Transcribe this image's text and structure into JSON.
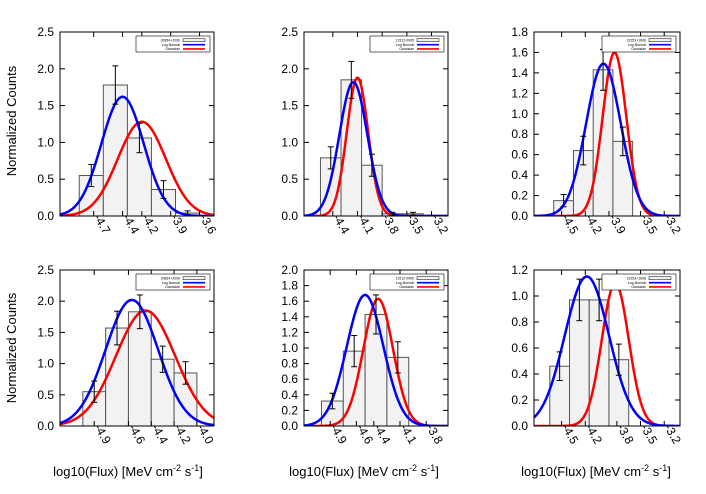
{
  "figure": {
    "ylabel": "Normalized Counts",
    "xlabel_prefix": "log10(Flux) [MeV cm",
    "xlabel_exp1": "-2",
    "xlabel_mid": " s",
    "xlabel_exp2": "-1",
    "xlabel_suffix": "]"
  },
  "colors": {
    "lognormal": "#0000ff",
    "gaussian": "#ff0000",
    "bar_fill": "#f2f2f2",
    "bar_stroke": "#555555"
  },
  "chart_data": [
    {
      "type": "bar",
      "panel": "top-left",
      "legend": {
        "data_label": "J0854+2006",
        "lognormal": "Log-Normal",
        "gaussian": "Gaussian"
      },
      "ylim": [
        0,
        2.5
      ],
      "yticks": [
        "0.0",
        "0.5",
        "1.0",
        "1.5",
        "2.0",
        "2.5"
      ],
      "xlim": [
        -5.05,
        -3.45
      ],
      "xticks": [
        -4.7,
        -4.4,
        -4.2,
        -3.9,
        -3.6
      ],
      "xtick_labels": [
        "-4.7",
        "-4.4",
        "-4.2",
        "-3.9",
        "-3.6"
      ],
      "bar_edges": [
        -4.85,
        -4.6,
        -4.35,
        -4.1,
        -3.85,
        -3.6
      ],
      "values": [
        0.55,
        1.78,
        1.06,
        0.36,
        0.04
      ],
      "errors": [
        0.15,
        0.26,
        0.2,
        0.12,
        0.03
      ],
      "lognormal": {
        "peak": 1.62,
        "mu": -4.4,
        "sigma": 0.22
      },
      "gaussian": {
        "peak": 1.28,
        "mu": -4.2,
        "sigma": 0.25
      }
    },
    {
      "type": "bar",
      "panel": "top-middle",
      "legend": {
        "data_label": "J1512-0905",
        "lognormal": "Log-Normal",
        "gaussian": "Gaussian"
      },
      "ylim": [
        0,
        2.5
      ],
      "yticks": [
        "0.0",
        "0.5",
        "1.0",
        "1.5",
        "2.0",
        "2.5"
      ],
      "xlim": [
        -4.75,
        -3.0
      ],
      "xticks": [
        -4.4,
        -4.1,
        -3.8,
        -3.5,
        -3.2
      ],
      "xtick_labels": [
        "-4.4",
        "-4.1",
        "-3.8",
        "-3.5",
        "-3.2"
      ],
      "bar_edges": [
        -4.55,
        -4.3,
        -4.05,
        -3.8,
        -3.55,
        -3.3
      ],
      "values": [
        0.79,
        1.85,
        0.69,
        0.03,
        0.03
      ],
      "errors": [
        0.15,
        0.25,
        0.15,
        0.02,
        0.02
      ],
      "lognormal": {
        "peak": 1.82,
        "mu": -4.15,
        "sigma": 0.17
      },
      "gaussian": {
        "peak": 1.88,
        "mu": -4.1,
        "sigma": 0.13
      }
    },
    {
      "type": "bar",
      "panel": "top-right",
      "legend": {
        "data_label": "J2253+1608",
        "lognormal": "Log-Normal",
        "gaussian": "Gaussian"
      },
      "ylim": [
        0,
        1.8
      ],
      "yticks": [
        "0.0",
        "0.2",
        "0.4",
        "0.6",
        "0.8",
        "1.0",
        "1.2",
        "1.4",
        "1.6",
        "1.8"
      ],
      "xlim": [
        -4.85,
        -3.0
      ],
      "xticks": [
        -4.5,
        -4.2,
        -3.9,
        -3.5,
        -3.2
      ],
      "xtick_labels": [
        "-4.5",
        "-4.2",
        "-3.9",
        "-3.5",
        "-3.2"
      ],
      "bar_edges": [
        -4.6,
        -4.35,
        -4.1,
        -3.85,
        -3.6
      ],
      "values": [
        0.15,
        0.64,
        1.43,
        0.73
      ],
      "errors": [
        0.06,
        0.14,
        0.2,
        0.14
      ],
      "lognormal": {
        "peak": 1.49,
        "mu": -3.97,
        "sigma": 0.22
      },
      "gaussian": {
        "peak": 1.6,
        "mu": -3.83,
        "sigma": 0.15
      }
    },
    {
      "type": "bar",
      "panel": "bottom-left",
      "legend": {
        "data_label": "J0854+2006",
        "lognormal": "Log-Normal",
        "gaussian": "Gaussian"
      },
      "ylim": [
        0,
        2.5
      ],
      "yticks": [
        "0.0",
        "0.5",
        "1.0",
        "1.5",
        "2.0",
        "2.5"
      ],
      "xlim": [
        -5.2,
        -3.85
      ],
      "xticks": [
        -4.9,
        -4.6,
        -4.4,
        -4.2,
        -4.0
      ],
      "xtick_labels": [
        "-4.9",
        "-4.6",
        "-4.4",
        "-4.2",
        "-4.0"
      ],
      "bar_edges": [
        -5.0,
        -4.8,
        -4.6,
        -4.4,
        -4.2,
        -4.0
      ],
      "values": [
        0.55,
        1.57,
        1.83,
        1.07,
        0.85
      ],
      "errors": [
        0.17,
        0.27,
        0.27,
        0.21,
        0.18
      ],
      "lognormal": {
        "peak": 2.02,
        "mu": -4.57,
        "sigma": 0.23
      },
      "gaussian": {
        "peak": 1.85,
        "mu": -4.45,
        "sigma": 0.26
      }
    },
    {
      "type": "bar",
      "panel": "bottom-middle",
      "legend": {
        "data_label": "J1512-0905",
        "lognormal": "Log-Normal",
        "gaussian": "Gaussian"
      },
      "ylim": [
        0,
        2.0
      ],
      "yticks": [
        "0.0",
        "0.2",
        "0.4",
        "0.6",
        "0.8",
        "1.0",
        "1.2",
        "1.4",
        "1.6",
        "1.8",
        "2.0"
      ],
      "xlim": [
        -5.2,
        -3.55
      ],
      "xticks": [
        -4.9,
        -4.6,
        -4.4,
        -4.1,
        -3.8
      ],
      "xtick_labels": [
        "-4.9",
        "-4.6",
        "-4.4",
        "-4.1",
        "-3.8"
      ],
      "bar_edges": [
        -5.0,
        -4.75,
        -4.5,
        -4.25,
        -4.0
      ],
      "values": [
        0.32,
        0.96,
        1.43,
        0.88
      ],
      "errors": [
        0.1,
        0.2,
        0.25,
        0.2
      ],
      "lognormal": {
        "peak": 1.68,
        "mu": -4.5,
        "sigma": 0.21
      },
      "gaussian": {
        "peak": 1.63,
        "mu": -4.35,
        "sigma": 0.17
      }
    },
    {
      "type": "bar",
      "panel": "bottom-right",
      "legend": {
        "data_label": "J2253+1608",
        "lognormal": "Log-Normal",
        "gaussian": "Gaussian"
      },
      "ylim": [
        0,
        1.2
      ],
      "yticks": [
        "0.0",
        "0.2",
        "0.4",
        "0.6",
        "0.8",
        "1.0",
        "1.2"
      ],
      "xlim": [
        -4.85,
        -3.0
      ],
      "xticks": [
        -4.5,
        -4.2,
        -3.8,
        -3.5,
        -3.2
      ],
      "xtick_labels": [
        "-4.5",
        "-4.2",
        "-3.8",
        "-3.5",
        "-3.2"
      ],
      "bar_edges": [
        -4.65,
        -4.4,
        -4.15,
        -3.9,
        -3.65
      ],
      "values": [
        0.46,
        0.97,
        0.97,
        0.51
      ],
      "errors": [
        0.11,
        0.16,
        0.16,
        0.12
      ],
      "lognormal": {
        "peak": 1.15,
        "mu": -4.18,
        "sigma": 0.28
      },
      "gaussian": {
        "peak": 1.1,
        "mu": -3.82,
        "sigma": 0.17
      }
    }
  ]
}
